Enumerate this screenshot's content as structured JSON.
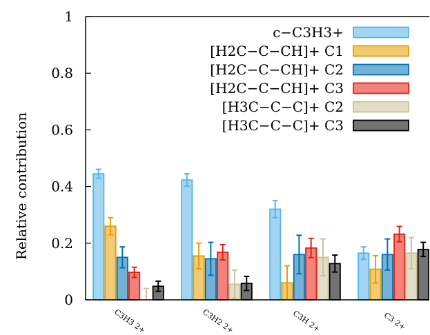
{
  "chart_data": {
    "type": "bar",
    "title": "",
    "xlabel": "",
    "ylabel": "Relative contribution",
    "ylim": [
      0,
      1
    ],
    "yticks": [
      "0",
      "0.2",
      "0.4",
      "0.6",
      "0.8",
      "1"
    ],
    "categories": [
      "C3H3 2+",
      "C3H2 2+",
      "C3H 2+",
      "C3 2+"
    ],
    "legend_position": "top-right",
    "series": [
      {
        "name": "c−C3H3+",
        "color": "#56b4e9",
        "values": [
          0.445,
          0.423,
          0.32,
          0.165
        ],
        "errors": [
          0.016,
          0.022,
          0.03,
          0.022
        ]
      },
      {
        "name": "[H2C−C−CH]+ C1",
        "color": "#e69f00",
        "values": [
          0.26,
          0.155,
          0.06,
          0.108
        ],
        "errors": [
          0.03,
          0.045,
          0.06,
          0.048
        ]
      },
      {
        "name": "[H2C−C−CH]+ C2",
        "color": "#0072b2",
        "values": [
          0.15,
          0.145,
          0.16,
          0.16
        ],
        "errors": [
          0.037,
          0.058,
          0.068,
          0.055
        ]
      },
      {
        "name": "[H2C−C−CH]+ C3",
        "color": "#e51e10",
        "values": [
          0.097,
          0.168,
          0.183,
          0.232
        ],
        "errors": [
          0.018,
          0.027,
          0.034,
          0.027
        ]
      },
      {
        "name": "[H3C−C−C]+ C2",
        "color": "#c9c29a",
        "values": [
          0.0,
          0.055,
          0.15,
          0.165
        ],
        "errors": [
          0.04,
          0.05,
          0.065,
          0.055
        ]
      },
      {
        "name": "[H3C−C−C]+ C3",
        "color": "#000000",
        "values": [
          0.048,
          0.058,
          0.128,
          0.178
        ],
        "errors": [
          0.018,
          0.025,
          0.03,
          0.025
        ]
      }
    ]
  }
}
